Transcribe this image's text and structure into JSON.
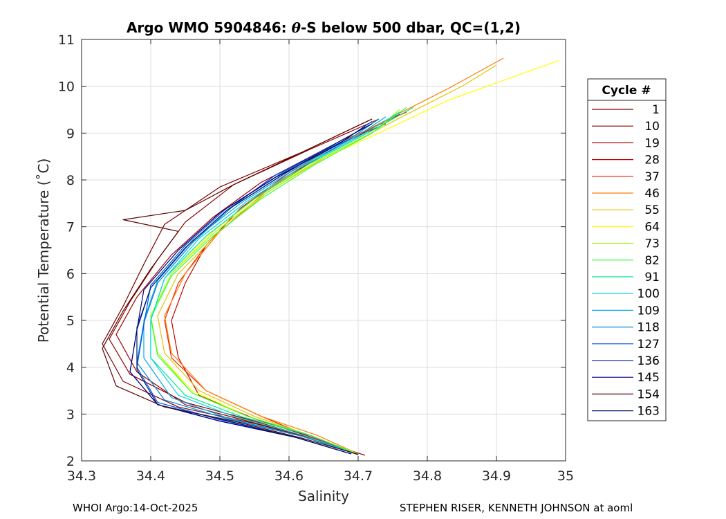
{
  "chart_data": {
    "type": "line",
    "title_prefix": "Argo WMO 5904846: ",
    "title_theta": "θ",
    "title_suffix": "-S below 500 dbar,  QC=(1,2)",
    "xlabel": "Salinity",
    "ylabel": "Potential Temperature (˚C)",
    "xlim": [
      34.3,
      35.0
    ],
    "ylim": [
      2,
      11
    ],
    "xticks": [
      34.3,
      34.4,
      34.5,
      34.6,
      34.7,
      34.8,
      34.9,
      35.0
    ],
    "xtick_labels": [
      "34.3",
      "34.4",
      "34.5",
      "34.6",
      "34.7",
      "34.8",
      "34.9",
      "35"
    ],
    "yticks": [
      2,
      3,
      4,
      5,
      6,
      7,
      8,
      9,
      10,
      11
    ],
    "ytick_labels": [
      "2",
      "3",
      "4",
      "5",
      "6",
      "7",
      "8",
      "9",
      "10",
      "11"
    ],
    "grid": true,
    "legend_title": "Cycle #",
    "legend_position": "outside-right",
    "series": [
      {
        "name": "1",
        "color": "#7f0000",
        "points": [
          [
            34.71,
            2.12
          ],
          [
            34.64,
            2.45
          ],
          [
            34.55,
            2.8
          ],
          [
            34.44,
            3.15
          ],
          [
            34.36,
            3.7
          ],
          [
            34.33,
            4.5
          ],
          [
            34.36,
            5.3
          ],
          [
            34.39,
            6.2
          ],
          [
            34.42,
            7.05
          ],
          [
            34.5,
            7.85
          ],
          [
            34.62,
            8.6
          ],
          [
            34.72,
            9.3
          ]
        ]
      },
      {
        "name": "10",
        "color": "#8e0000",
        "points": [
          [
            34.7,
            2.14
          ],
          [
            34.63,
            2.5
          ],
          [
            34.55,
            2.85
          ],
          [
            34.45,
            3.25
          ],
          [
            34.37,
            3.85
          ],
          [
            34.34,
            4.6
          ],
          [
            34.37,
            5.4
          ],
          [
            34.41,
            6.3
          ],
          [
            34.45,
            7.1
          ],
          [
            34.52,
            7.9
          ],
          [
            34.63,
            8.65
          ],
          [
            34.73,
            9.3
          ]
        ]
      },
      {
        "name": "19",
        "color": "#a10000",
        "points": [
          [
            34.7,
            2.13
          ],
          [
            34.63,
            2.5
          ],
          [
            34.54,
            2.85
          ],
          [
            34.45,
            3.2
          ],
          [
            34.38,
            3.9
          ],
          [
            34.35,
            4.7
          ],
          [
            34.38,
            5.5
          ],
          [
            34.43,
            6.4
          ],
          [
            34.49,
            7.2
          ],
          [
            34.56,
            7.95
          ],
          [
            34.64,
            8.55
          ],
          [
            34.74,
            9.2
          ]
        ]
      },
      {
        "name": "28",
        "color": "#c20000",
        "points": [
          [
            34.7,
            2.14
          ],
          [
            34.63,
            2.52
          ],
          [
            34.55,
            2.9
          ],
          [
            34.47,
            3.4
          ],
          [
            34.44,
            4.2
          ],
          [
            34.43,
            5.0
          ],
          [
            34.45,
            5.8
          ],
          [
            34.48,
            6.6
          ],
          [
            34.53,
            7.4
          ],
          [
            34.6,
            8.1
          ],
          [
            34.68,
            8.8
          ],
          [
            34.76,
            9.4
          ]
        ]
      },
      {
        "name": "37",
        "color": "#e62200",
        "points": [
          [
            34.7,
            2.14
          ],
          [
            34.63,
            2.52
          ],
          [
            34.56,
            2.95
          ],
          [
            34.48,
            3.5
          ],
          [
            34.43,
            4.2
          ],
          [
            34.42,
            5.0
          ],
          [
            34.44,
            5.8
          ],
          [
            34.48,
            6.6
          ],
          [
            34.53,
            7.4
          ],
          [
            34.6,
            8.15
          ],
          [
            34.68,
            8.85
          ],
          [
            34.77,
            9.45
          ]
        ]
      },
      {
        "name": "46",
        "color": "#ff7a00",
        "points": [
          [
            34.7,
            2.15
          ],
          [
            34.64,
            2.55
          ],
          [
            34.56,
            2.95
          ],
          [
            34.48,
            3.5
          ],
          [
            34.43,
            4.3
          ],
          [
            34.42,
            5.1
          ],
          [
            34.45,
            6.0
          ],
          [
            34.5,
            6.9
          ],
          [
            34.57,
            7.8
          ],
          [
            34.65,
            8.6
          ],
          [
            34.75,
            9.35
          ],
          [
            34.83,
            9.95
          ],
          [
            34.91,
            10.6
          ]
        ]
      },
      {
        "name": "55",
        "color": "#e6c200",
        "points": [
          [
            34.7,
            2.15
          ],
          [
            34.63,
            2.55
          ],
          [
            34.55,
            2.95
          ],
          [
            34.47,
            3.5
          ],
          [
            34.42,
            4.3
          ],
          [
            34.41,
            5.1
          ],
          [
            34.44,
            6.0
          ],
          [
            34.5,
            6.9
          ],
          [
            34.57,
            7.75
          ],
          [
            34.66,
            8.55
          ],
          [
            34.77,
            9.4
          ],
          [
            34.85,
            10.0
          ],
          [
            34.9,
            10.45
          ]
        ]
      },
      {
        "name": "64",
        "color": "#ffff00",
        "points": [
          [
            34.7,
            2.15
          ],
          [
            34.63,
            2.55
          ],
          [
            34.54,
            2.95
          ],
          [
            34.46,
            3.5
          ],
          [
            34.41,
            4.3
          ],
          [
            34.4,
            5.1
          ],
          [
            34.43,
            6.0
          ],
          [
            34.49,
            6.9
          ],
          [
            34.56,
            7.7
          ],
          [
            34.64,
            8.4
          ],
          [
            34.73,
            9.0
          ],
          [
            34.83,
            9.7
          ],
          [
            34.99,
            10.55
          ]
        ]
      },
      {
        "name": "73",
        "color": "#9aff00",
        "points": [
          [
            34.7,
            2.14
          ],
          [
            34.63,
            2.55
          ],
          [
            34.54,
            2.95
          ],
          [
            34.46,
            3.45
          ],
          [
            34.41,
            4.3
          ],
          [
            34.4,
            5.1
          ],
          [
            34.43,
            6.0
          ],
          [
            34.49,
            6.85
          ],
          [
            34.56,
            7.65
          ],
          [
            34.64,
            8.4
          ],
          [
            34.72,
            9.0
          ],
          [
            34.76,
            9.5
          ]
        ]
      },
      {
        "name": "82",
        "color": "#3aff3a",
        "points": [
          [
            34.7,
            2.14
          ],
          [
            34.63,
            2.55
          ],
          [
            34.54,
            2.95
          ],
          [
            34.46,
            3.45
          ],
          [
            34.41,
            4.25
          ],
          [
            34.4,
            5.05
          ],
          [
            34.43,
            5.95
          ],
          [
            34.49,
            6.8
          ],
          [
            34.56,
            7.6
          ],
          [
            34.64,
            8.35
          ],
          [
            34.72,
            9.0
          ],
          [
            34.77,
            9.55
          ]
        ]
      },
      {
        "name": "91",
        "color": "#00e68a",
        "points": [
          [
            34.7,
            2.13
          ],
          [
            34.63,
            2.55
          ],
          [
            34.53,
            2.95
          ],
          [
            34.45,
            3.4
          ],
          [
            34.4,
            4.2
          ],
          [
            34.4,
            5.0
          ],
          [
            34.42,
            5.9
          ],
          [
            34.48,
            6.8
          ],
          [
            34.55,
            7.6
          ],
          [
            34.63,
            8.35
          ],
          [
            34.72,
            9.05
          ],
          [
            34.78,
            9.55
          ]
        ]
      },
      {
        "name": "100",
        "color": "#00d4e6",
        "points": [
          [
            34.7,
            2.13
          ],
          [
            34.62,
            2.55
          ],
          [
            34.52,
            2.95
          ],
          [
            34.44,
            3.4
          ],
          [
            34.4,
            4.2
          ],
          [
            34.4,
            5.0
          ],
          [
            34.42,
            5.9
          ],
          [
            34.47,
            6.75
          ],
          [
            34.54,
            7.55
          ],
          [
            34.62,
            8.3
          ],
          [
            34.71,
            9.0
          ],
          [
            34.76,
            9.45
          ]
        ]
      },
      {
        "name": "109",
        "color": "#00a8f0",
        "points": [
          [
            34.7,
            2.13
          ],
          [
            34.62,
            2.52
          ],
          [
            34.51,
            2.92
          ],
          [
            34.43,
            3.35
          ],
          [
            34.39,
            4.2
          ],
          [
            34.39,
            5.0
          ],
          [
            34.41,
            5.85
          ],
          [
            34.46,
            6.7
          ],
          [
            34.53,
            7.5
          ],
          [
            34.61,
            8.25
          ],
          [
            34.7,
            8.95
          ],
          [
            34.74,
            9.35
          ]
        ]
      },
      {
        "name": "118",
        "color": "#0088d8",
        "points": [
          [
            34.7,
            2.13
          ],
          [
            34.62,
            2.52
          ],
          [
            34.51,
            2.9
          ],
          [
            34.42,
            3.3
          ],
          [
            34.38,
            4.1
          ],
          [
            34.39,
            4.95
          ],
          [
            34.41,
            5.8
          ],
          [
            34.46,
            6.65
          ],
          [
            34.52,
            7.45
          ],
          [
            34.6,
            8.2
          ],
          [
            34.69,
            8.9
          ],
          [
            34.73,
            9.3
          ]
        ]
      },
      {
        "name": "127",
        "color": "#0055e0",
        "points": [
          [
            34.69,
            2.15
          ],
          [
            34.61,
            2.5
          ],
          [
            34.5,
            2.88
          ],
          [
            34.41,
            3.25
          ],
          [
            34.38,
            4.0
          ],
          [
            34.39,
            4.9
          ],
          [
            34.4,
            5.75
          ],
          [
            34.45,
            6.6
          ],
          [
            34.51,
            7.4
          ],
          [
            34.59,
            8.15
          ],
          [
            34.68,
            8.85
          ],
          [
            34.72,
            9.25
          ]
        ]
      },
      {
        "name": "136",
        "color": "#1030b0",
        "points": [
          [
            34.69,
            2.15
          ],
          [
            34.61,
            2.5
          ],
          [
            34.5,
            2.85
          ],
          [
            34.41,
            3.2
          ],
          [
            34.37,
            3.9
          ],
          [
            34.38,
            4.8
          ],
          [
            34.4,
            5.7
          ],
          [
            34.45,
            6.55
          ],
          [
            34.51,
            7.35
          ],
          [
            34.58,
            8.1
          ],
          [
            34.67,
            8.8
          ],
          [
            34.72,
            9.2
          ]
        ]
      },
      {
        "name": "145",
        "color": "#000080",
        "points": [
          [
            34.69,
            2.15
          ],
          [
            34.61,
            2.5
          ],
          [
            34.5,
            2.85
          ],
          [
            34.41,
            3.2
          ],
          [
            34.37,
            3.9
          ],
          [
            34.38,
            4.8
          ],
          [
            34.39,
            5.65
          ],
          [
            34.44,
            6.5
          ],
          [
            34.5,
            7.3
          ],
          [
            34.58,
            8.05
          ],
          [
            34.67,
            8.75
          ],
          [
            34.71,
            9.15
          ]
        ]
      },
      {
        "name": "154",
        "color": "#5a0000",
        "points": [
          [
            34.7,
            2.14
          ],
          [
            34.62,
            2.48
          ],
          [
            34.52,
            2.85
          ],
          [
            34.42,
            3.15
          ],
          [
            34.35,
            3.6
          ],
          [
            34.33,
            4.4
          ],
          [
            34.36,
            5.2
          ],
          [
            34.4,
            6.1
          ],
          [
            34.44,
            6.9
          ],
          [
            34.36,
            7.15
          ],
          [
            34.45,
            7.35
          ],
          [
            34.52,
            7.9
          ],
          [
            34.62,
            8.6
          ],
          [
            34.72,
            9.3
          ]
        ]
      },
      {
        "name": "163",
        "color": "#00186e",
        "points": [
          [
            34.69,
            2.15
          ],
          [
            34.61,
            2.5
          ],
          [
            34.51,
            2.86
          ],
          [
            34.41,
            3.2
          ],
          [
            34.38,
            3.95
          ],
          [
            34.38,
            4.85
          ],
          [
            34.4,
            5.7
          ],
          [
            34.45,
            6.55
          ],
          [
            34.51,
            7.35
          ],
          [
            34.59,
            8.1
          ],
          [
            34.67,
            8.8
          ],
          [
            34.72,
            9.2
          ]
        ]
      }
    ]
  },
  "footer": {
    "left": "WHOI Argo:14-Oct-2025",
    "right": "STEPHEN RISER, KENNETH JOHNSON at aoml"
  }
}
